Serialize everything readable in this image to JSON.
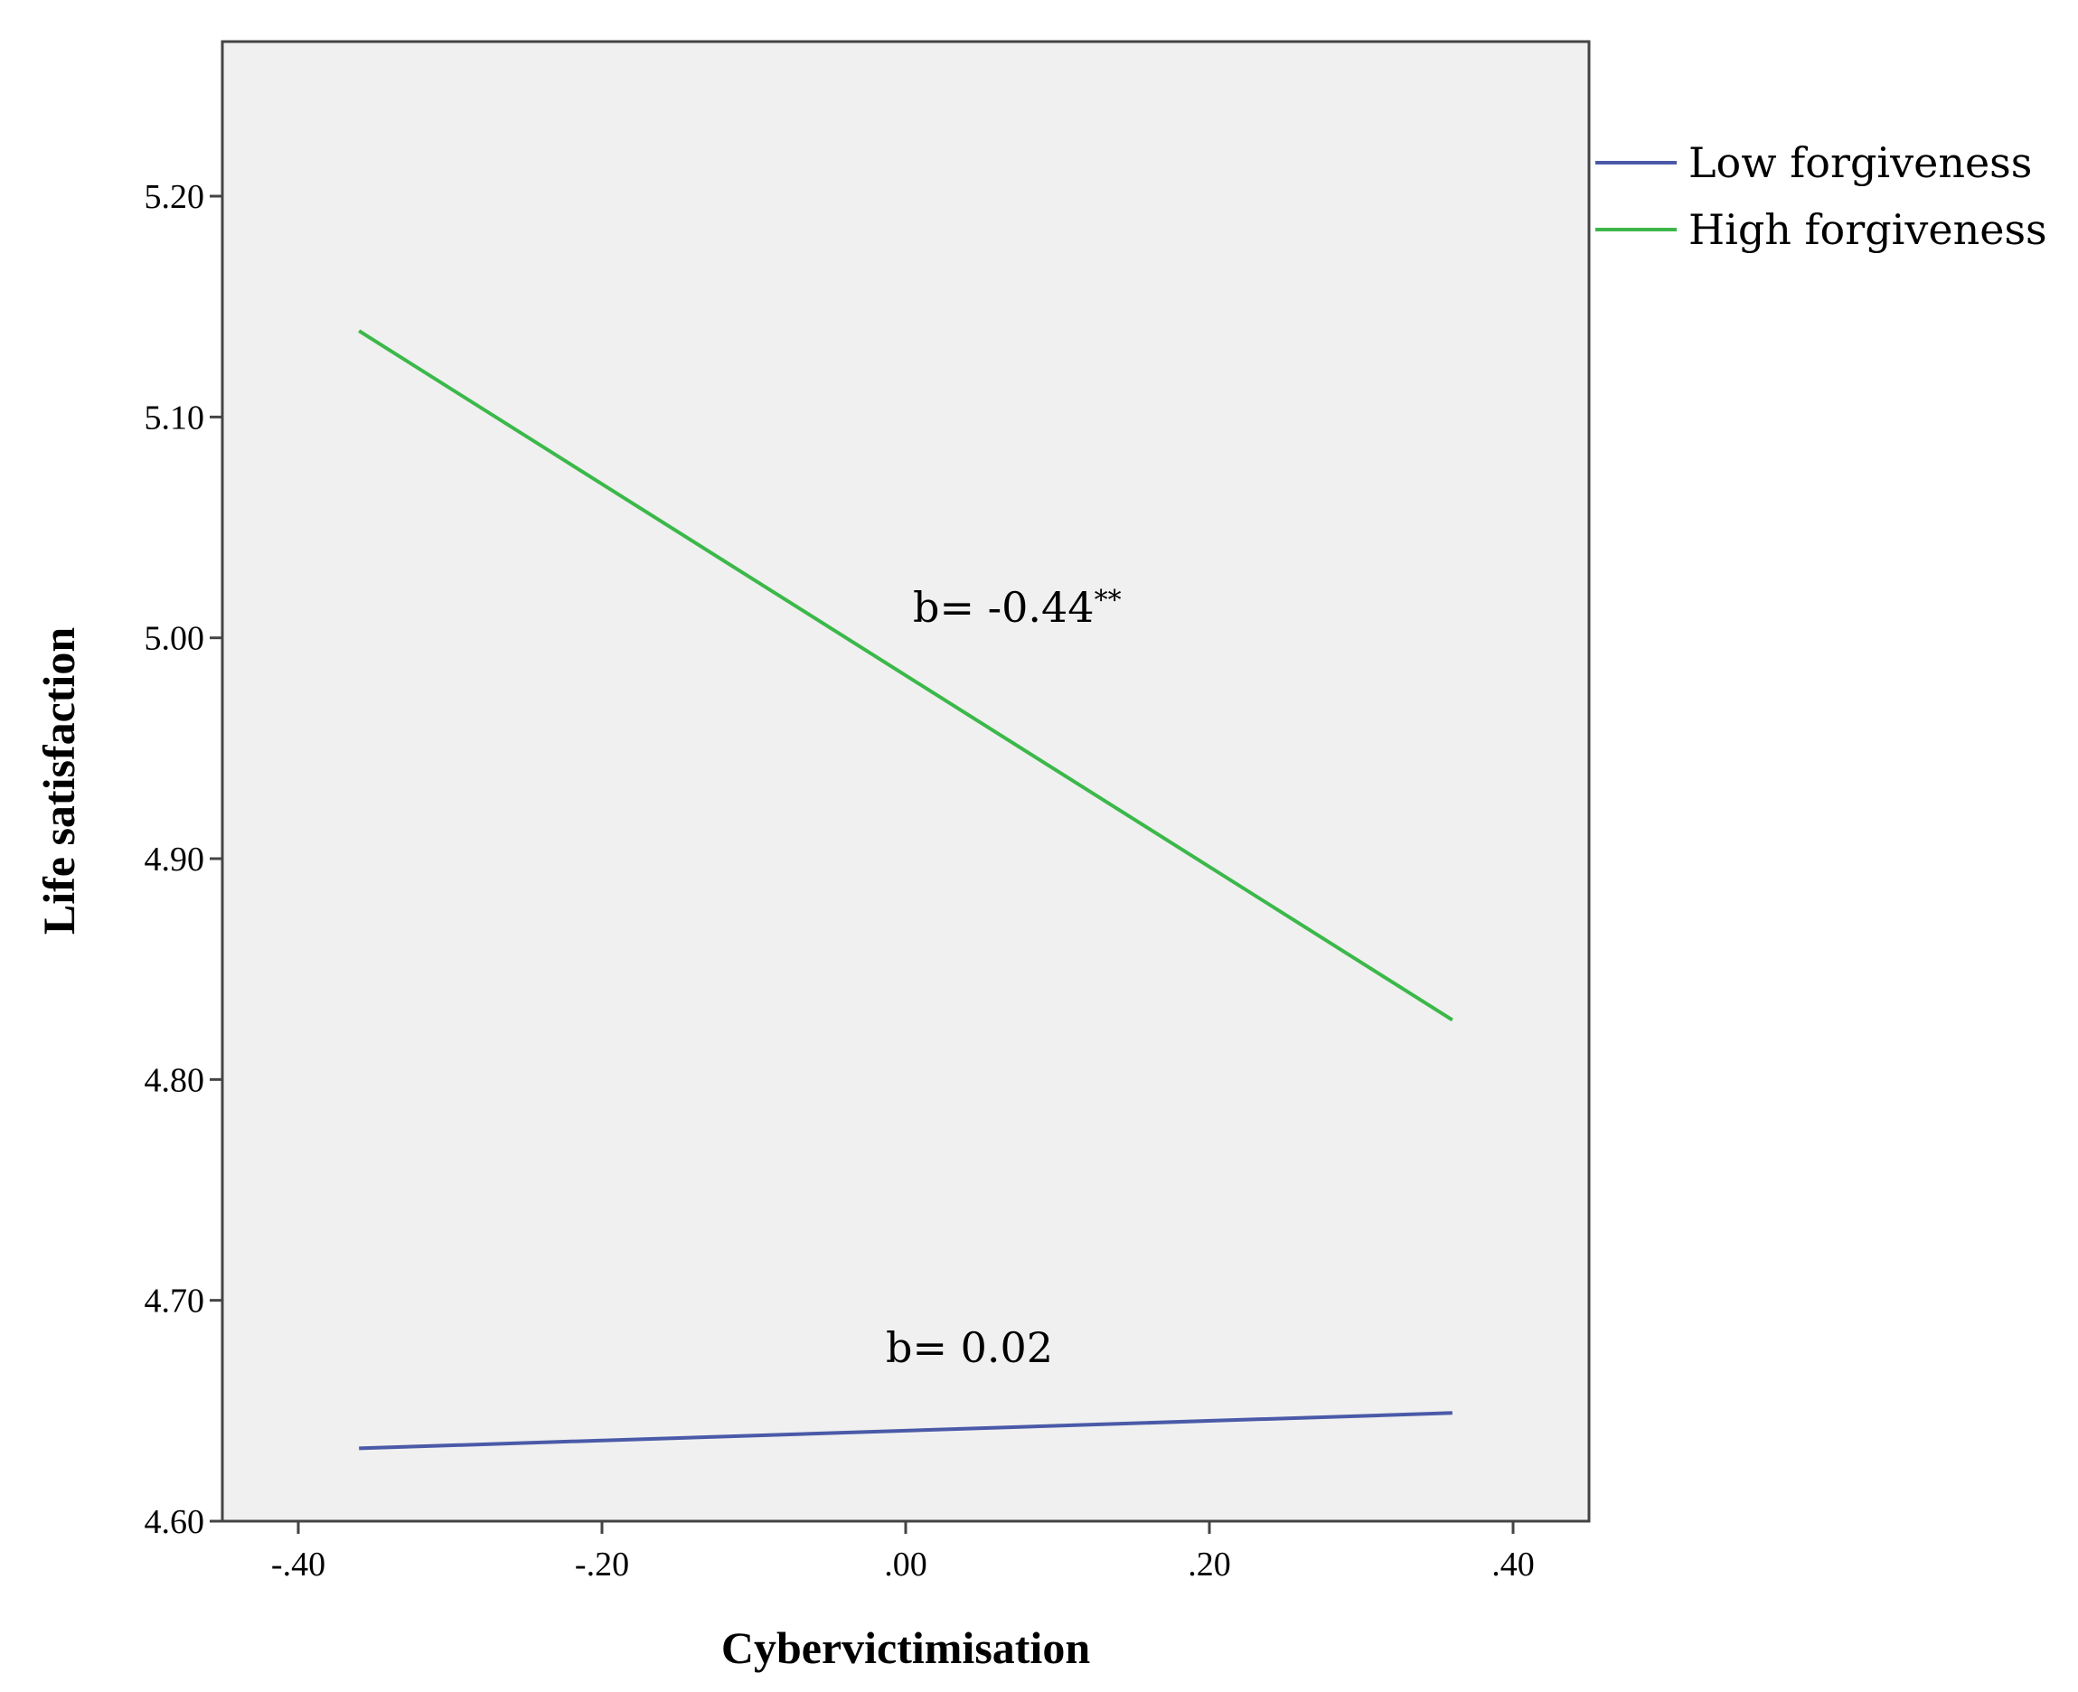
{
  "chart_data": {
    "type": "line",
    "title": "",
    "xlabel": "Cybervictimisation",
    "ylabel": "Life satisfaction",
    "xlim": [
      -0.45,
      0.45
    ],
    "ylim": [
      4.6,
      5.27
    ],
    "x_ticks": [
      -0.4,
      -0.2,
      0.0,
      0.2,
      0.4
    ],
    "x_tick_labels": [
      "-.40",
      "-.20",
      ".00",
      ".20",
      ".40"
    ],
    "y_ticks": [
      4.6,
      4.7,
      4.8,
      4.9,
      5.0,
      5.1,
      5.2
    ],
    "y_tick_labels": [
      "4.60",
      "4.70",
      "4.80",
      "4.90",
      "5.00",
      "5.10",
      "5.20"
    ],
    "grid": false,
    "legend_position": "right-top-outside",
    "plot_background": "#f0f0f0",
    "series": [
      {
        "name": "Low forgiveness",
        "color": "#4a5aa8",
        "x": [
          -0.36,
          0.36
        ],
        "y": [
          4.633,
          4.649
        ]
      },
      {
        "name": "High forgiveness",
        "color": "#3cb84a",
        "x": [
          -0.36,
          0.36
        ],
        "y": [
          5.139,
          4.827
        ]
      }
    ],
    "annotations": [
      {
        "text": "b= -0.44",
        "sup": "**",
        "series": "High forgiveness"
      },
      {
        "text": "b= 0.02",
        "sup": "",
        "series": "Low forgiveness"
      }
    ]
  }
}
